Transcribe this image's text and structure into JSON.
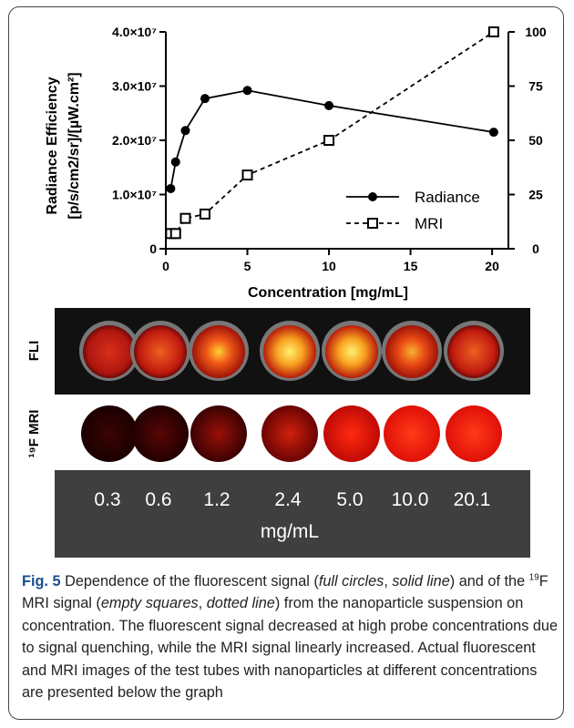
{
  "chart_data": {
    "type": "line",
    "x_label": "Concentration [mg/mL]",
    "y_label": [
      "Radiance  Efficiency",
      "[p/s/cm2/sr]/[µW.cm²]"
    ],
    "x": [
      0.3,
      0.6,
      1.2,
      2.4,
      5.0,
      10.0,
      20.1
    ],
    "series": [
      {
        "name": "Radiance",
        "color": "#000000",
        "marker": "circle",
        "line_style": "solid",
        "axis": "y",
        "values": [
          11100000,
          16000000,
          21800000,
          27700000,
          29200000,
          26400000,
          21500000
        ]
      },
      {
        "name": "MRI",
        "color": "#000000",
        "marker": "square",
        "line_style": "dashed",
        "axis": "y2",
        "values": [
          7,
          7,
          14,
          16,
          34,
          50,
          100
        ]
      }
    ],
    "xlim": [
      0,
      21
    ],
    "xticks": [
      0,
      5,
      10,
      15,
      20
    ],
    "ylim": [
      0,
      40000000
    ],
    "yticks": [
      0,
      {
        "value": 10000000,
        "label": "1.0×10⁷"
      },
      {
        "value": 20000000,
        "label": "2.0×10⁷"
      },
      {
        "value": 30000000,
        "label": "3.0×10⁷"
      },
      {
        "value": 40000000,
        "label": "4.0×10⁷"
      }
    ],
    "y2lim": [
      0,
      100
    ],
    "y2ticks": [
      0,
      25,
      50,
      75,
      100
    ]
  },
  "image_panel": {
    "row_labels": [
      "FLI",
      "¹⁹F MRI"
    ],
    "concentrations": [
      "0.3",
      "0.6",
      "1.2",
      "2.4",
      "5.0",
      "10.0",
      "20.1"
    ],
    "unit": "mg/mL"
  },
  "caption": {
    "label": "Fig. 5",
    "parts": [
      "Dependence of the fluorescent signal (",
      "full circles",
      ", ",
      "solid line",
      ") and of the ",
      "19",
      "F MRI signal (",
      "empty squares",
      ", ",
      "dotted line",
      ") from the nanoparticle suspension on concentration. The fluorescent signal decreased at high probe concentrations due to signal quenching, while the MRI signal linearly increased. Actual fluorescent and MRI images of the test tubes with nanoparticles at different concentrations are presented below the graph"
    ]
  }
}
